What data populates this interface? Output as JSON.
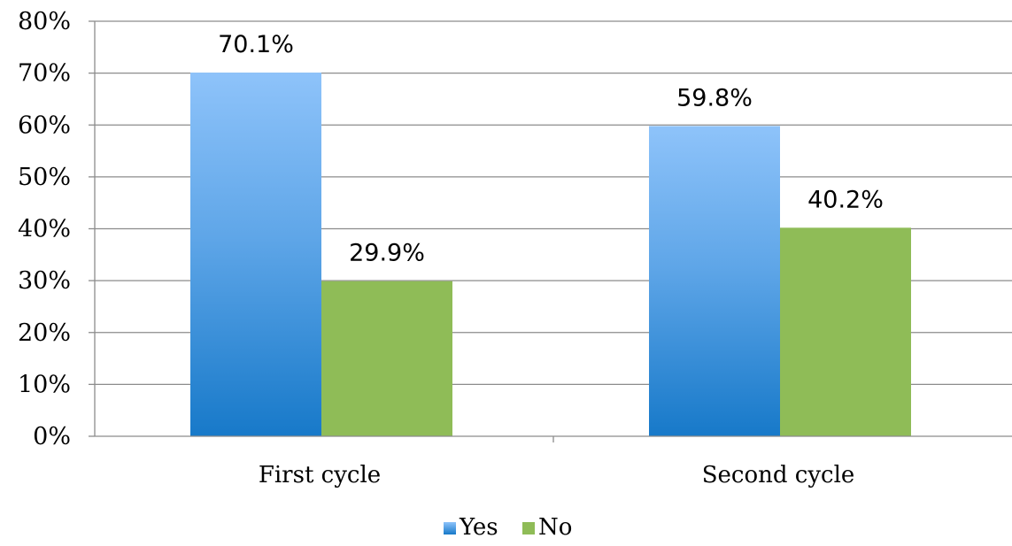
{
  "chart_data": {
    "type": "bar",
    "categories": [
      "First cycle",
      "Second cycle"
    ],
    "series": [
      {
        "name": "Yes",
        "values": [
          70.1,
          59.8
        ],
        "labels": [
          "70.1%",
          "59.8%"
        ],
        "color": "#3E94DB"
      },
      {
        "name": "No",
        "values": [
          29.9,
          40.2
        ],
        "labels": [
          "29.9%",
          "40.2%"
        ],
        "color": "#8FBC57"
      }
    ],
    "ylim": [
      0,
      80
    ],
    "y_ticks": [
      "0%",
      "10%",
      "20%",
      "30%",
      "40%",
      "50%",
      "60%",
      "70%",
      "80%"
    ],
    "grid": true,
    "legend_position": "bottom",
    "title": "",
    "xlabel": "",
    "ylabel": ""
  }
}
